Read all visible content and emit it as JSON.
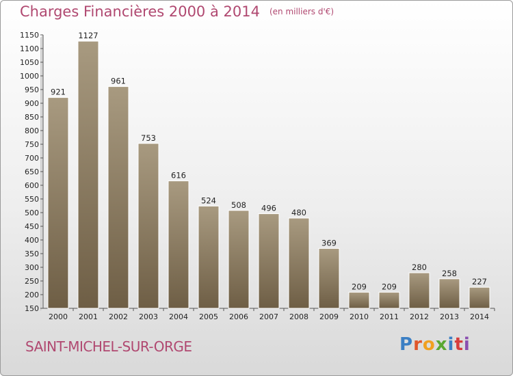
{
  "header": {
    "title": "Charges Financières 2000 à 2014",
    "subtitle": "(en milliers d'€)"
  },
  "footer": {
    "commune": "SAINT-MICHEL-SUR-ORGE",
    "logo": "Proxiti"
  },
  "colors": {
    "title": "#b04870",
    "bar_top": "#a89a80",
    "bar_bottom": "#6e5e45",
    "bar_edge": "#ffffff"
  },
  "chart_data": {
    "type": "bar",
    "title": "Charges Financières 2000 à 2014",
    "subtitle": "(en milliers d'€)",
    "xlabel": "",
    "ylabel": "",
    "categories": [
      "2000",
      "2001",
      "2002",
      "2003",
      "2004",
      "2005",
      "2006",
      "2007",
      "2008",
      "2009",
      "2010",
      "2011",
      "2012",
      "2013",
      "2014"
    ],
    "values": [
      921,
      1127,
      961,
      753,
      616,
      524,
      508,
      496,
      480,
      369,
      209,
      209,
      280,
      258,
      227
    ],
    "ylim": [
      150,
      1150
    ],
    "yticks": [
      150,
      200,
      250,
      300,
      350,
      400,
      450,
      500,
      550,
      600,
      650,
      700,
      750,
      800,
      850,
      900,
      950,
      1000,
      1050,
      1100,
      1150
    ],
    "grid": false,
    "legend": "none"
  }
}
